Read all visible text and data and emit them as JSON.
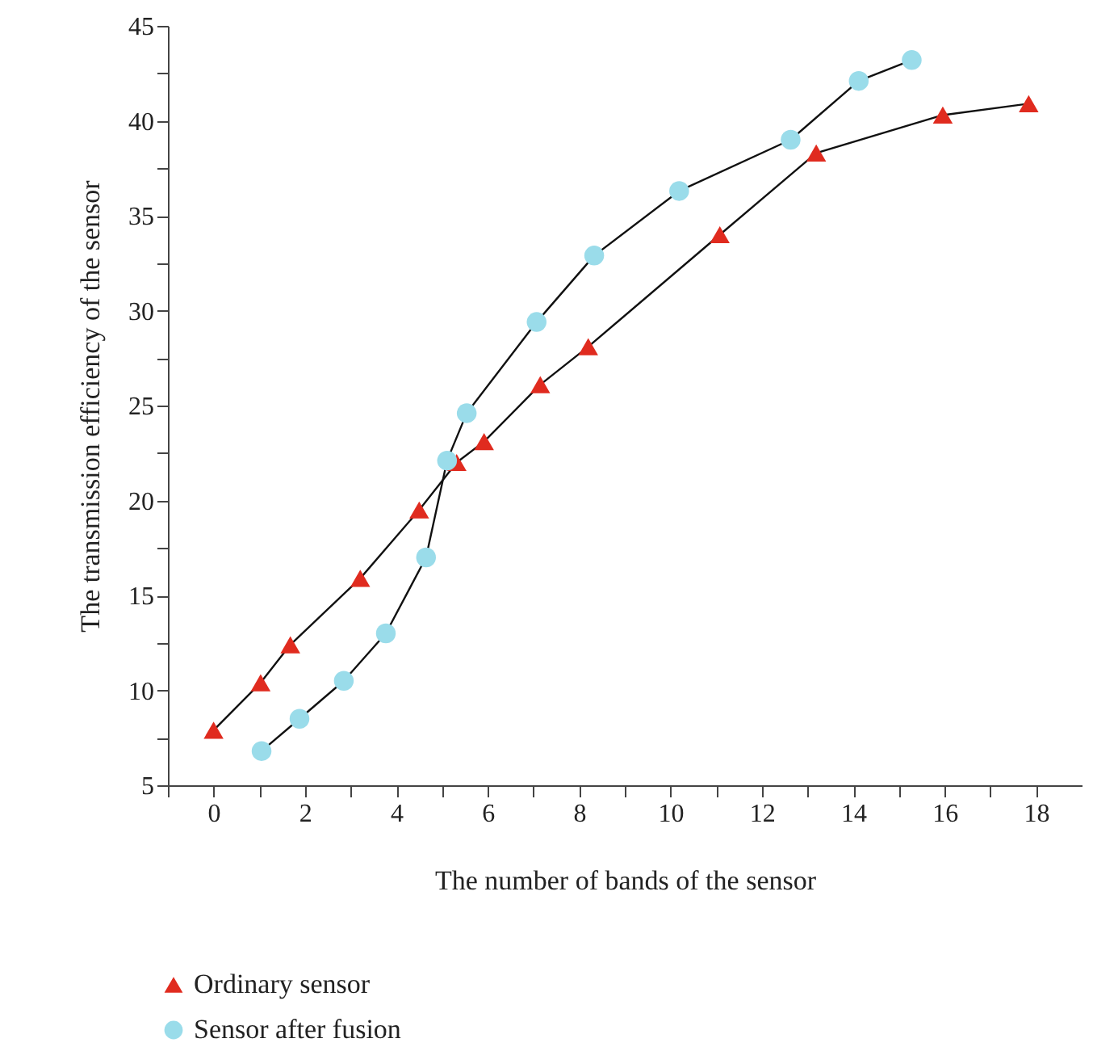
{
  "chart_data": {
    "type": "line",
    "xlabel": "The number of bands of the sensor",
    "ylabel": "The transmission efficiency of the sensor",
    "xlim": [
      -1,
      19
    ],
    "ylim": [
      5,
      45
    ],
    "xticks": [
      {
        "value": -1,
        "label": null
      },
      0,
      {
        "value": 1,
        "label": null
      },
      2,
      {
        "value": 3,
        "label": null
      },
      4,
      {
        "value": 5,
        "label": null
      },
      6,
      {
        "value": 7,
        "label": null
      },
      8,
      {
        "value": 9,
        "label": null
      },
      10,
      {
        "value": 11,
        "label": null
      },
      12,
      {
        "value": 13,
        "label": null
      },
      14,
      {
        "value": 15,
        "label": null
      },
      16,
      {
        "value": 17,
        "label": null
      },
      18
    ],
    "yticks": [
      5,
      {
        "value": 7.5,
        "label": null
      },
      10,
      {
        "value": 12.5,
        "label": null
      },
      15,
      {
        "value": 17.5,
        "label": null
      },
      20,
      {
        "value": 22.5,
        "label": null
      },
      25,
      {
        "value": 27.5,
        "label": null
      },
      30,
      {
        "value": 32.5,
        "label": null
      },
      35,
      {
        "value": 37.5,
        "label": null
      },
      40,
      {
        "value": 42.5,
        "label": null
      },
      45
    ],
    "grid": false,
    "legend": "bottom left",
    "line_style": "solid",
    "series": [
      {
        "name": "Ordinary sensor",
        "color": "#e02b1f",
        "marker": "triangle",
        "x": [
          0,
          1.03,
          1.68,
          3.21,
          4.5,
          5.32,
          5.92,
          7.15,
          8.2,
          11.08,
          13.19,
          15.96,
          17.84
        ],
        "values": [
          7.9,
          10.4,
          12.4,
          15.9,
          19.5,
          22.0,
          23.1,
          26.1,
          28.1,
          34.0,
          38.3,
          40.3,
          40.9
        ]
      },
      {
        "name": "Sensor after fusion",
        "color": "#9adcea",
        "marker": "circle",
        "x": [
          1.05,
          1.88,
          2.85,
          3.77,
          4.65,
          5.11,
          5.54,
          7.07,
          8.33,
          10.19,
          12.63,
          14.12,
          15.28
        ],
        "values": [
          6.8,
          8.5,
          10.5,
          13.0,
          17.0,
          22.1,
          24.6,
          29.4,
          32.9,
          36.3,
          39.0,
          42.1,
          43.2
        ]
      }
    ]
  }
}
